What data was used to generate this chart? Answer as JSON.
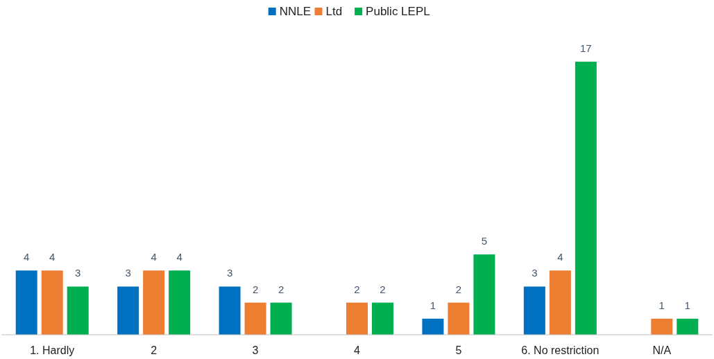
{
  "chart_data": {
    "type": "bar",
    "categories": [
      "1. Hardly",
      "2",
      "3",
      "4",
      "5",
      "6. No restriction",
      "N/A"
    ],
    "series": [
      {
        "name": "NNLE",
        "color": "#0070c0",
        "values": [
          4,
          3,
          3,
          null,
          1,
          3,
          null
        ]
      },
      {
        "name": "Ltd",
        "color": "#ed7d31",
        "values": [
          4,
          4,
          2,
          2,
          2,
          4,
          1
        ]
      },
      {
        "name": "Public LEPL",
        "color": "#00b050",
        "values": [
          3,
          4,
          2,
          2,
          5,
          17,
          1
        ]
      }
    ],
    "data_labels": true,
    "legend": "top",
    "grid": false
  }
}
